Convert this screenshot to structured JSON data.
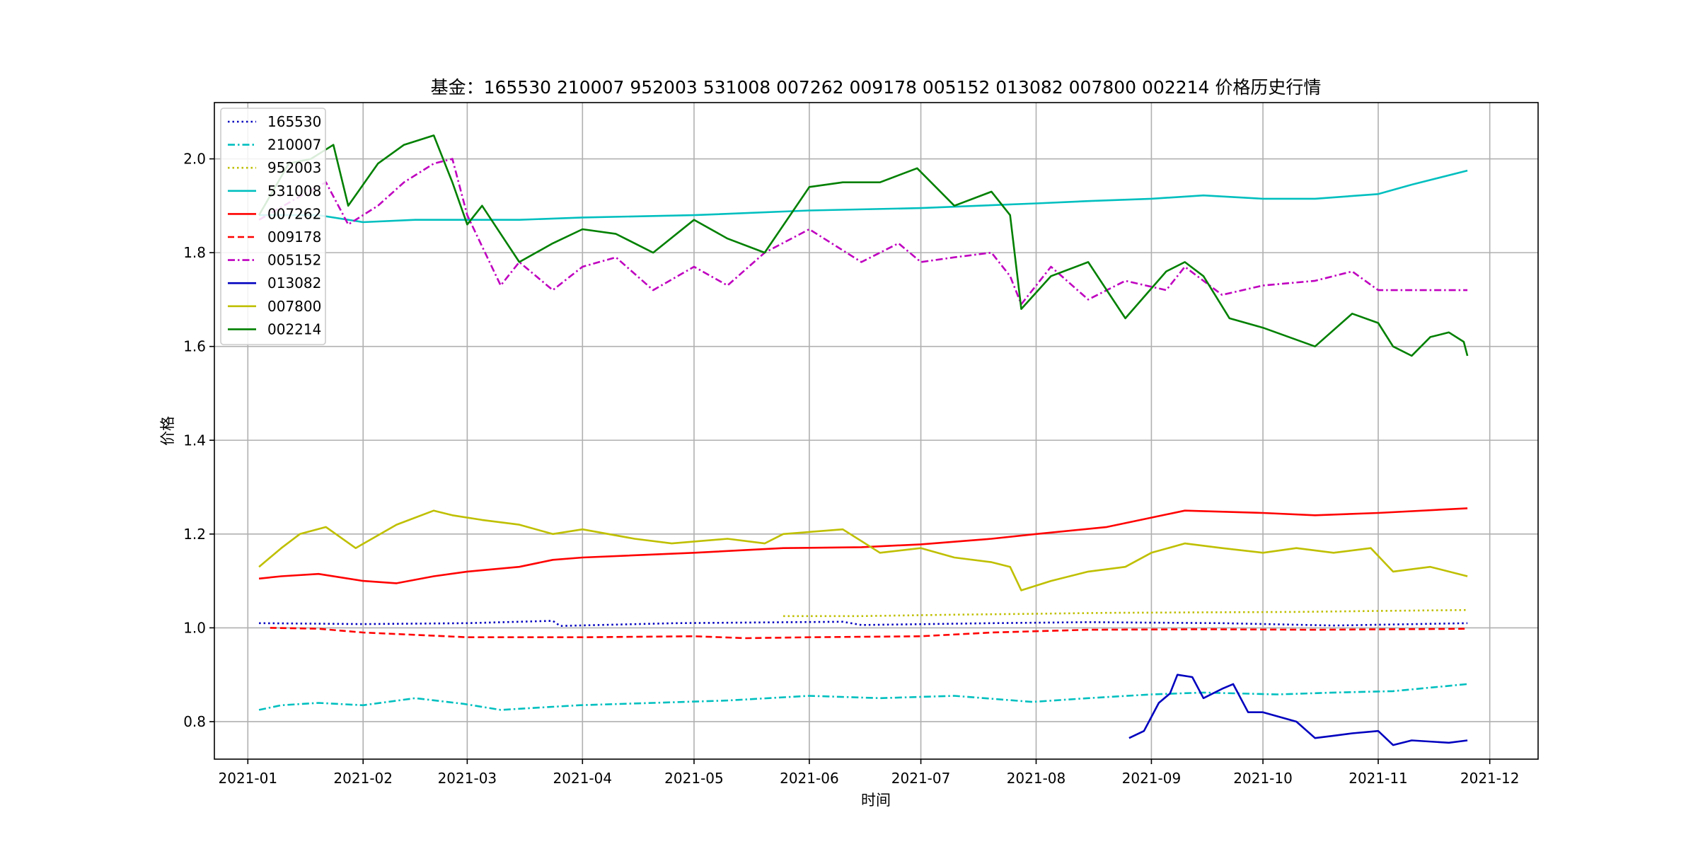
{
  "chart_data": {
    "type": "line",
    "title": "基金：165530 210007 952003 531008 007262 009178 005152 013082 007800 002214  价格历史行情",
    "xlabel": "时间",
    "ylabel": "价格",
    "xlim": [
      "2020-12-23",
      "2021-12-14"
    ],
    "ylim": [
      0.72,
      2.12
    ],
    "x_ticks": [
      "2021-01",
      "2021-02",
      "2021-03",
      "2021-04",
      "2021-05",
      "2021-06",
      "2021-07",
      "2021-08",
      "2021-09",
      "2021-10",
      "2021-11",
      "2021-12"
    ],
    "y_ticks": [
      "0.8",
      "1.0",
      "1.2",
      "1.4",
      "1.6",
      "1.8",
      "2.0"
    ],
    "grid": true,
    "legend_position": "upper-left",
    "series": [
      {
        "name": "165530",
        "color": "#0000bf",
        "dash": "dotted",
        "x": [
          "2021-01-04",
          "2021-02-01",
          "2021-03-01",
          "2021-03-24",
          "2021-03-26",
          "2021-04-26",
          "2021-06-10",
          "2021-06-15",
          "2021-07-20",
          "2021-08-15",
          "2021-09-20",
          "2021-10-20",
          "2021-11-25"
        ],
        "y": [
          1.01,
          1.008,
          1.01,
          1.015,
          1.004,
          1.01,
          1.013,
          1.006,
          1.01,
          1.012,
          1.01,
          1.005,
          1.01
        ]
      },
      {
        "name": "210007",
        "color": "#00bfbf",
        "dash": "dashdot",
        "x": [
          "2021-01-04",
          "2021-01-10",
          "2021-01-20",
          "2021-02-01",
          "2021-02-15",
          "2021-02-28",
          "2021-03-10",
          "2021-03-31",
          "2021-04-20",
          "2021-05-10",
          "2021-06-01",
          "2021-06-20",
          "2021-07-10",
          "2021-07-31",
          "2021-08-15",
          "2021-09-01",
          "2021-09-15",
          "2021-10-05",
          "2021-10-20",
          "2021-11-05",
          "2021-11-25"
        ],
        "y": [
          0.825,
          0.835,
          0.84,
          0.835,
          0.85,
          0.838,
          0.825,
          0.835,
          0.84,
          0.845,
          0.855,
          0.85,
          0.855,
          0.842,
          0.85,
          0.858,
          0.862,
          0.858,
          0.862,
          0.865,
          0.88
        ]
      },
      {
        "name": "952003",
        "color": "#bfbf00",
        "dash": "dotted",
        "x": [
          "2021-05-25",
          "2021-06-15",
          "2021-07-10",
          "2021-08-01",
          "2021-08-20",
          "2021-09-15",
          "2021-10-10",
          "2021-11-01",
          "2021-11-25"
        ],
        "y": [
          1.025,
          1.025,
          1.028,
          1.03,
          1.032,
          1.033,
          1.034,
          1.036,
          1.038
        ]
      },
      {
        "name": "531008",
        "color": "#00bfbf",
        "dash": "solid",
        "x": [
          "2021-01-04",
          "2021-01-20",
          "2021-02-01",
          "2021-02-15",
          "2021-03-01",
          "2021-03-15",
          "2021-04-01",
          "2021-05-01",
          "2021-06-01",
          "2021-07-01",
          "2021-08-01",
          "2021-08-15",
          "2021-09-01",
          "2021-09-15",
          "2021-10-01",
          "2021-10-15",
          "2021-11-01",
          "2021-11-10",
          "2021-11-25"
        ],
        "y": [
          1.88,
          1.88,
          1.865,
          1.87,
          1.87,
          1.87,
          1.875,
          1.88,
          1.89,
          1.895,
          1.905,
          1.91,
          1.915,
          1.922,
          1.915,
          1.915,
          1.925,
          1.945,
          1.975
        ]
      },
      {
        "name": "007262",
        "color": "#ff0000",
        "dash": "solid",
        "x": [
          "2021-01-04",
          "2021-01-10",
          "2021-01-20",
          "2021-02-01",
          "2021-02-10",
          "2021-02-20",
          "2021-03-01",
          "2021-03-15",
          "2021-03-24",
          "2021-04-01",
          "2021-05-01",
          "2021-05-25",
          "2021-06-15",
          "2021-07-01",
          "2021-07-20",
          "2021-08-01",
          "2021-08-20",
          "2021-09-01",
          "2021-09-10",
          "2021-10-01",
          "2021-10-15",
          "2021-11-01",
          "2021-11-25"
        ],
        "y": [
          1.105,
          1.11,
          1.115,
          1.1,
          1.095,
          1.11,
          1.12,
          1.13,
          1.145,
          1.15,
          1.16,
          1.17,
          1.172,
          1.178,
          1.19,
          1.2,
          1.215,
          1.235,
          1.25,
          1.245,
          1.24,
          1.245,
          1.255
        ]
      },
      {
        "name": "009178",
        "color": "#ff0000",
        "dash": "dashed",
        "x": [
          "2021-01-07",
          "2021-01-20",
          "2021-02-01",
          "2021-02-15",
          "2021-03-01",
          "2021-04-01",
          "2021-05-01",
          "2021-05-15",
          "2021-06-01",
          "2021-07-01",
          "2021-07-20",
          "2021-08-15",
          "2021-09-15",
          "2021-10-15",
          "2021-11-25"
        ],
        "y": [
          1.0,
          0.998,
          0.99,
          0.985,
          0.98,
          0.98,
          0.982,
          0.978,
          0.98,
          0.982,
          0.99,
          0.996,
          0.997,
          0.996,
          0.998
        ]
      },
      {
        "name": "005152",
        "color": "#bf00bf",
        "dash": "dashdot",
        "x": [
          "2021-01-04",
          "2021-01-15",
          "2021-01-22",
          "2021-01-28",
          "2021-02-05",
          "2021-02-12",
          "2021-02-20",
          "2021-02-25",
          "2021-03-01",
          "2021-03-10",
          "2021-03-15",
          "2021-03-24",
          "2021-04-01",
          "2021-04-10",
          "2021-04-20",
          "2021-05-01",
          "2021-05-10",
          "2021-05-20",
          "2021-06-01",
          "2021-06-15",
          "2021-06-25",
          "2021-07-01",
          "2021-07-10",
          "2021-07-20",
          "2021-07-25",
          "2021-07-28",
          "2021-08-05",
          "2021-08-15",
          "2021-08-25",
          "2021-09-05",
          "2021-09-10",
          "2021-09-20",
          "2021-10-01",
          "2021-10-15",
          "2021-10-25",
          "2021-11-01",
          "2021-11-10",
          "2021-11-25"
        ],
        "y": [
          1.87,
          1.92,
          1.95,
          1.86,
          1.9,
          1.95,
          1.99,
          2.0,
          1.88,
          1.73,
          1.78,
          1.72,
          1.77,
          1.79,
          1.72,
          1.77,
          1.73,
          1.8,
          1.85,
          1.78,
          1.82,
          1.78,
          1.79,
          1.8,
          1.75,
          1.69,
          1.77,
          1.7,
          1.74,
          1.72,
          1.77,
          1.71,
          1.73,
          1.74,
          1.76,
          1.72,
          1.72,
          1.72
        ]
      },
      {
        "name": "013082",
        "color": "#0000bf",
        "dash": "solid",
        "x": [
          "2021-08-26",
          "2021-08-30",
          "2021-09-03",
          "2021-09-06",
          "2021-09-08",
          "2021-09-12",
          "2021-09-15",
          "2021-09-20",
          "2021-09-23",
          "2021-09-27",
          "2021-10-01",
          "2021-10-10",
          "2021-10-15",
          "2021-10-20",
          "2021-10-25",
          "2021-11-01",
          "2021-11-05",
          "2021-11-10",
          "2021-11-20",
          "2021-11-25"
        ],
        "y": [
          0.765,
          0.78,
          0.84,
          0.86,
          0.9,
          0.895,
          0.85,
          0.87,
          0.88,
          0.82,
          0.82,
          0.8,
          0.765,
          0.77,
          0.775,
          0.78,
          0.75,
          0.76,
          0.755,
          0.76
        ]
      },
      {
        "name": "007800",
        "color": "#bfbf00",
        "dash": "solid",
        "x": [
          "2021-01-04",
          "2021-01-10",
          "2021-01-15",
          "2021-01-22",
          "2021-01-30",
          "2021-02-10",
          "2021-02-20",
          "2021-02-25",
          "2021-03-05",
          "2021-03-15",
          "2021-03-24",
          "2021-04-01",
          "2021-04-15",
          "2021-04-25",
          "2021-05-10",
          "2021-05-20",
          "2021-05-25",
          "2021-06-10",
          "2021-06-20",
          "2021-07-01",
          "2021-07-10",
          "2021-07-20",
          "2021-07-25",
          "2021-07-28",
          "2021-08-05",
          "2021-08-15",
          "2021-08-25",
          "2021-09-01",
          "2021-09-10",
          "2021-09-20",
          "2021-10-01",
          "2021-10-10",
          "2021-10-20",
          "2021-10-30",
          "2021-11-05",
          "2021-11-15",
          "2021-11-25"
        ],
        "y": [
          1.13,
          1.17,
          1.2,
          1.215,
          1.17,
          1.22,
          1.25,
          1.24,
          1.23,
          1.22,
          1.2,
          1.21,
          1.19,
          1.18,
          1.19,
          1.18,
          1.2,
          1.21,
          1.16,
          1.17,
          1.15,
          1.14,
          1.13,
          1.08,
          1.1,
          1.12,
          1.13,
          1.16,
          1.18,
          1.17,
          1.16,
          1.17,
          1.16,
          1.17,
          1.12,
          1.13,
          1.11
        ]
      },
      {
        "name": "002214",
        "color": "#008000",
        "dash": "solid",
        "x": [
          "2021-01-04",
          "2021-01-12",
          "2021-01-18",
          "2021-01-24",
          "2021-01-28",
          "2021-02-05",
          "2021-02-12",
          "2021-02-20",
          "2021-02-25",
          "2021-03-01",
          "2021-03-05",
          "2021-03-15",
          "2021-03-24",
          "2021-04-01",
          "2021-04-10",
          "2021-04-20",
          "2021-05-01",
          "2021-05-10",
          "2021-05-20",
          "2021-06-01",
          "2021-06-10",
          "2021-06-20",
          "2021-06-30",
          "2021-07-10",
          "2021-07-20",
          "2021-07-25",
          "2021-07-28",
          "2021-08-05",
          "2021-08-15",
          "2021-08-20",
          "2021-08-25",
          "2021-09-05",
          "2021-09-10",
          "2021-09-15",
          "2021-09-22",
          "2021-10-01",
          "2021-10-15",
          "2021-10-25",
          "2021-11-01",
          "2021-11-05",
          "2021-11-10",
          "2021-11-15",
          "2021-11-20",
          "2021-11-24",
          "2021-11-25"
        ],
        "y": [
          1.88,
          1.99,
          2.0,
          2.03,
          1.9,
          1.99,
          2.03,
          2.05,
          1.95,
          1.86,
          1.9,
          1.78,
          1.82,
          1.85,
          1.84,
          1.8,
          1.87,
          1.83,
          1.8,
          1.94,
          1.95,
          1.95,
          1.98,
          1.9,
          1.93,
          1.88,
          1.68,
          1.75,
          1.78,
          1.72,
          1.66,
          1.76,
          1.78,
          1.75,
          1.66,
          1.64,
          1.6,
          1.67,
          1.65,
          1.6,
          1.58,
          1.62,
          1.63,
          1.61,
          1.58
        ]
      }
    ]
  }
}
